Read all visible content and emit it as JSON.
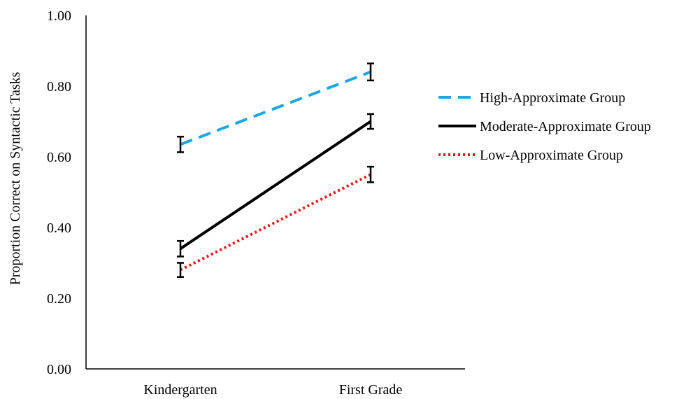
{
  "chart_data": {
    "type": "line",
    "title": "",
    "xlabel": "",
    "ylabel": "Proportion Correct on Syntactic Tasks",
    "categories": [
      "Kindergarten",
      "First Grade"
    ],
    "ylim": [
      0,
      1
    ],
    "yticks": [
      0.0,
      0.2,
      0.4,
      0.6,
      0.8,
      1.0
    ],
    "ytick_labels": [
      "0.00",
      "0.20",
      "0.40",
      "0.60",
      "0.80",
      "1.00"
    ],
    "grid": false,
    "legend_position": "right",
    "series": [
      {
        "name": "High-Approximate Group",
        "values": [
          0.635,
          0.84
        ],
        "error": [
          0.022,
          0.024
        ],
        "color": "#1aa7e6",
        "style": "dashed"
      },
      {
        "name": "Moderate-Approximate Group",
        "values": [
          0.34,
          0.7
        ],
        "error": [
          0.022,
          0.021
        ],
        "color": "#000000",
        "style": "solid"
      },
      {
        "name": "Low-Approximate Group",
        "values": [
          0.28,
          0.55
        ],
        "error": [
          0.02,
          0.022
        ],
        "color": "#e8141c",
        "style": "dotted"
      }
    ]
  }
}
